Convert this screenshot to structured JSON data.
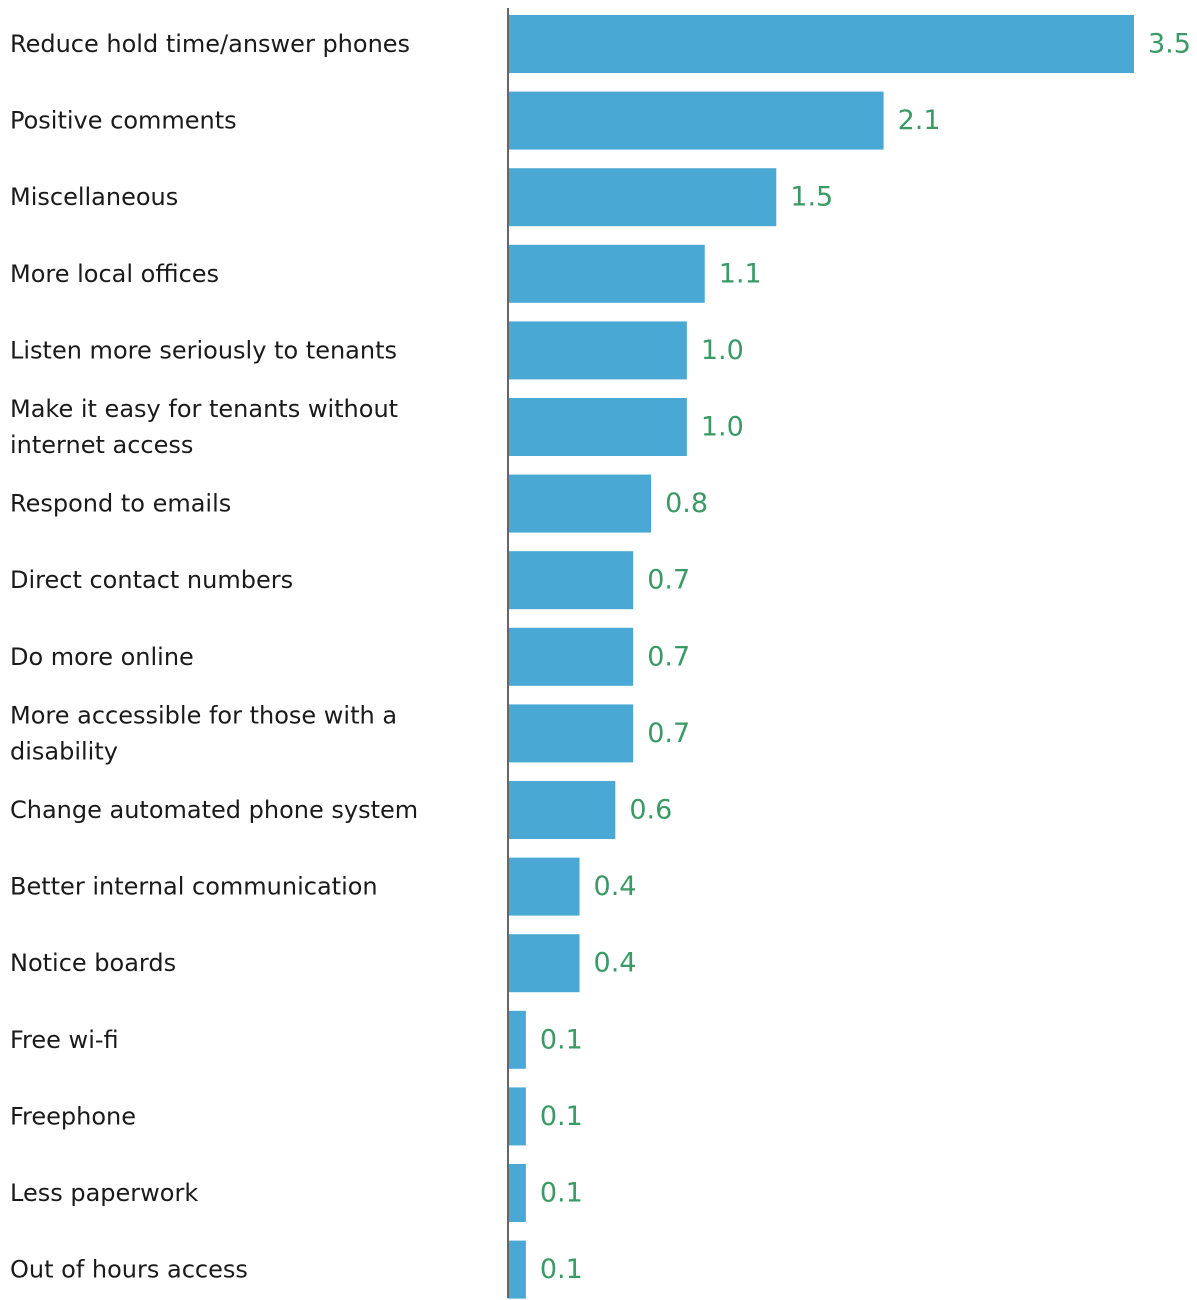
{
  "chart_data": {
    "type": "bar",
    "orientation": "horizontal",
    "categories": [
      [
        "Reduce hold time/answer phones"
      ],
      [
        "Positive comments"
      ],
      [
        "Miscellaneous"
      ],
      [
        "More local offices"
      ],
      [
        "Listen more seriously to tenants"
      ],
      [
        "Make it easy for tenants without",
        "internet access"
      ],
      [
        "Respond to emails"
      ],
      [
        "Direct contact numbers"
      ],
      [
        "Do more online"
      ],
      [
        "More accessible for those with a",
        "disability"
      ],
      [
        "Change automated phone system"
      ],
      [
        "Better internal communication"
      ],
      [
        "Notice boards"
      ],
      [
        "Free wi-fi"
      ],
      [
        "Freephone"
      ],
      [
        "Less paperwork"
      ],
      [
        "Out of hours access"
      ]
    ],
    "values": [
      3.5,
      2.1,
      1.5,
      1.1,
      1.0,
      1.0,
      0.8,
      0.7,
      0.7,
      0.7,
      0.6,
      0.4,
      0.4,
      0.1,
      0.1,
      0.1,
      0.1
    ],
    "value_labels": [
      "3.5",
      "2.1",
      "1.5",
      "1.1",
      "1.0",
      "1.0",
      "0.8",
      "0.7",
      "0.7",
      "0.7",
      "0.6",
      "0.4",
      "0.4",
      "0.1",
      "0.1",
      "0.1",
      "0.1"
    ],
    "xlim": [
      0,
      3.5
    ],
    "grid": false,
    "legend": "none",
    "colors": {
      "bar": "#4aa9d4",
      "value_label": "#3a9a66",
      "category_label": "#1a1a1a",
      "axis": "#666666"
    }
  }
}
